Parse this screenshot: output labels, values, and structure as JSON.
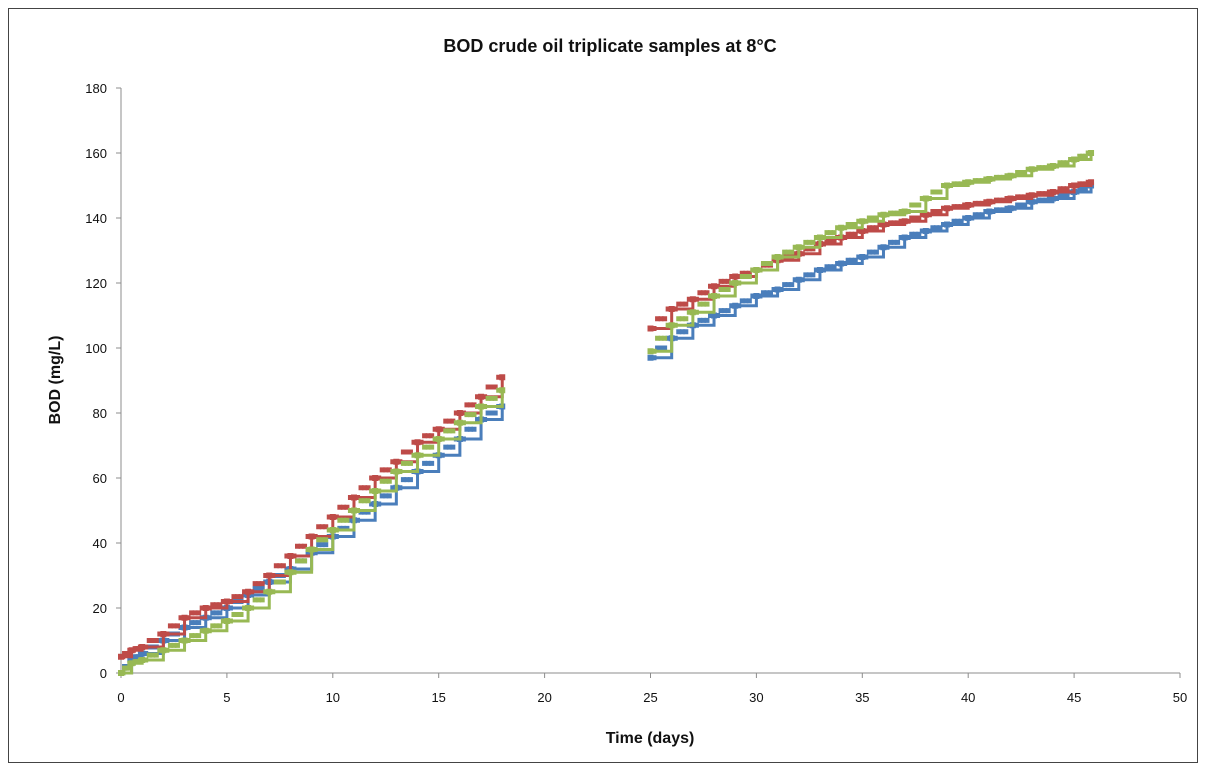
{
  "chart_data": {
    "type": "scatter",
    "title": "BOD crude oil triplicate samples at 8°C",
    "xlabel": "Time (days)",
    "ylabel": "BOD (mg/L)",
    "xlim": [
      0,
      50
    ],
    "ylim": [
      0,
      180
    ],
    "xticks": [
      "0",
      "5",
      "10",
      "15",
      "20",
      "25",
      "30",
      "35",
      "40",
      "45",
      "50"
    ],
    "yticks": [
      "0",
      "20",
      "40",
      "60",
      "80",
      "100",
      "120",
      "140",
      "160",
      "180"
    ],
    "grid": false,
    "legend": "none",
    "marker": "stepped dense markers",
    "series": [
      {
        "color": "#4a7ebb",
        "segments": [
          [
            [
              0,
              0
            ],
            [
              0.5,
              4
            ],
            [
              1,
              6
            ],
            [
              2,
              10
            ],
            [
              3,
              14
            ],
            [
              4,
              17
            ],
            [
              5,
              20
            ],
            [
              6,
              24
            ],
            [
              7,
              28
            ],
            [
              8,
              32
            ],
            [
              9,
              37
            ],
            [
              10,
              42
            ],
            [
              11,
              47
            ],
            [
              12,
              52
            ],
            [
              13,
              57
            ],
            [
              14,
              62
            ],
            [
              15,
              67
            ],
            [
              16,
              72
            ],
            [
              17,
              78
            ],
            [
              18,
              82
            ]
          ],
          [
            [
              25,
              97
            ],
            [
              26,
              103
            ],
            [
              27,
              107
            ],
            [
              28,
              110
            ],
            [
              29,
              113
            ],
            [
              30,
              116
            ],
            [
              31,
              118
            ],
            [
              32,
              121
            ],
            [
              33,
              124
            ],
            [
              34,
              126
            ],
            [
              35,
              128
            ],
            [
              36,
              131
            ],
            [
              37,
              134
            ],
            [
              38,
              136
            ],
            [
              39,
              138
            ],
            [
              40,
              140
            ],
            [
              41,
              142
            ],
            [
              42,
              143
            ],
            [
              43,
              145
            ],
            [
              44,
              146
            ],
            [
              45,
              148
            ],
            [
              45.8,
              150
            ]
          ]
        ]
      },
      {
        "color": "#be4b48",
        "segments": [
          [
            [
              0,
              5
            ],
            [
              0.5,
              7
            ],
            [
              1,
              8
            ],
            [
              2,
              12
            ],
            [
              3,
              17
            ],
            [
              4,
              20
            ],
            [
              5,
              22
            ],
            [
              6,
              25
            ],
            [
              7,
              30
            ],
            [
              8,
              36
            ],
            [
              9,
              42
            ],
            [
              10,
              48
            ],
            [
              11,
              54
            ],
            [
              12,
              60
            ],
            [
              13,
              65
            ],
            [
              14,
              71
            ],
            [
              15,
              75
            ],
            [
              16,
              80
            ],
            [
              17,
              85
            ],
            [
              18,
              91
            ]
          ],
          [
            [
              25,
              106
            ],
            [
              26,
              112
            ],
            [
              27,
              115
            ],
            [
              28,
              119
            ],
            [
              29,
              122
            ],
            [
              30,
              124
            ],
            [
              31,
              127
            ],
            [
              32,
              129
            ],
            [
              33,
              132
            ],
            [
              34,
              134
            ],
            [
              35,
              136
            ],
            [
              36,
              138
            ],
            [
              37,
              139
            ],
            [
              38,
              141
            ],
            [
              39,
              143
            ],
            [
              40,
              144
            ],
            [
              41,
              145
            ],
            [
              42,
              146
            ],
            [
              43,
              147
            ],
            [
              44,
              148
            ],
            [
              45,
              150
            ],
            [
              45.8,
              151
            ]
          ]
        ]
      },
      {
        "color": "#98b954",
        "segments": [
          [
            [
              0,
              0
            ],
            [
              0.5,
              3
            ],
            [
              1,
              4
            ],
            [
              2,
              7
            ],
            [
              3,
              10
            ],
            [
              4,
              13
            ],
            [
              5,
              16
            ],
            [
              6,
              20
            ],
            [
              7,
              25
            ],
            [
              8,
              31
            ],
            [
              9,
              38
            ],
            [
              10,
              44
            ],
            [
              11,
              50
            ],
            [
              12,
              56
            ],
            [
              13,
              62
            ],
            [
              14,
              67
            ],
            [
              15,
              72
            ],
            [
              16,
              77
            ],
            [
              17,
              82
            ],
            [
              18,
              87
            ]
          ],
          [
            [
              25,
              99
            ],
            [
              26,
              107
            ],
            [
              27,
              111
            ],
            [
              28,
              116
            ],
            [
              29,
              120
            ],
            [
              30,
              124
            ],
            [
              31,
              128
            ],
            [
              32,
              131
            ],
            [
              33,
              134
            ],
            [
              34,
              137
            ],
            [
              35,
              139
            ],
            [
              36,
              141
            ],
            [
              37,
              142
            ],
            [
              38,
              146
            ],
            [
              39,
              150
            ],
            [
              40,
              151
            ],
            [
              41,
              152
            ],
            [
              42,
              153
            ],
            [
              43,
              155
            ],
            [
              44,
              156
            ],
            [
              45,
              158
            ],
            [
              45.8,
              160
            ]
          ]
        ]
      }
    ]
  }
}
